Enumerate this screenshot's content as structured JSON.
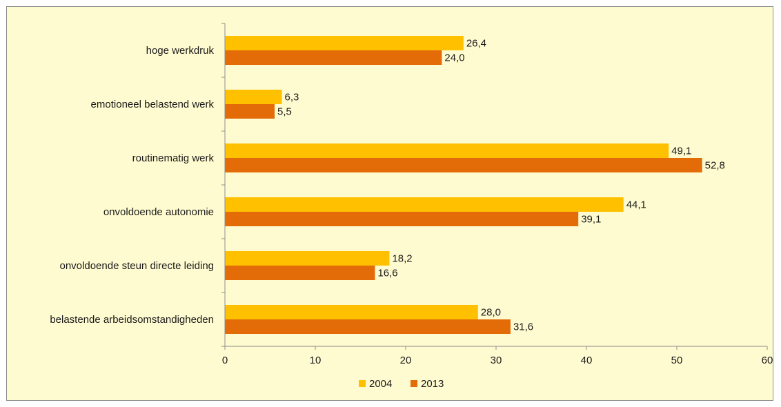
{
  "chart_data": {
    "type": "bar",
    "orientation": "horizontal",
    "categories": [
      "hoge werkdruk",
      "emotioneel belastend werk",
      "routinematig werk",
      "onvoldoende autonomie",
      "onvoldoende steun directe leiding",
      "belastende arbeidsomstandigheden"
    ],
    "series": [
      {
        "name": "2004",
        "color": "#ffc000",
        "values": [
          26.4,
          6.3,
          49.1,
          44.1,
          18.2,
          28.0
        ],
        "labels": [
          "26,4",
          "6,3",
          "49,1",
          "44,1",
          "18,2",
          "28,0"
        ]
      },
      {
        "name": "2013",
        "color": "#e36c09",
        "values": [
          24.0,
          5.5,
          52.8,
          39.1,
          16.6,
          31.6
        ],
        "labels": [
          "24,0",
          "5,5",
          "52,8",
          "39,1",
          "16,6",
          "31,6"
        ]
      }
    ],
    "xlim": [
      0,
      60
    ],
    "xticks": [
      "0",
      "10",
      "20",
      "30",
      "40",
      "50",
      "60"
    ],
    "grid": false,
    "legend_position": "bottom",
    "background_color": "#fffbd0"
  }
}
